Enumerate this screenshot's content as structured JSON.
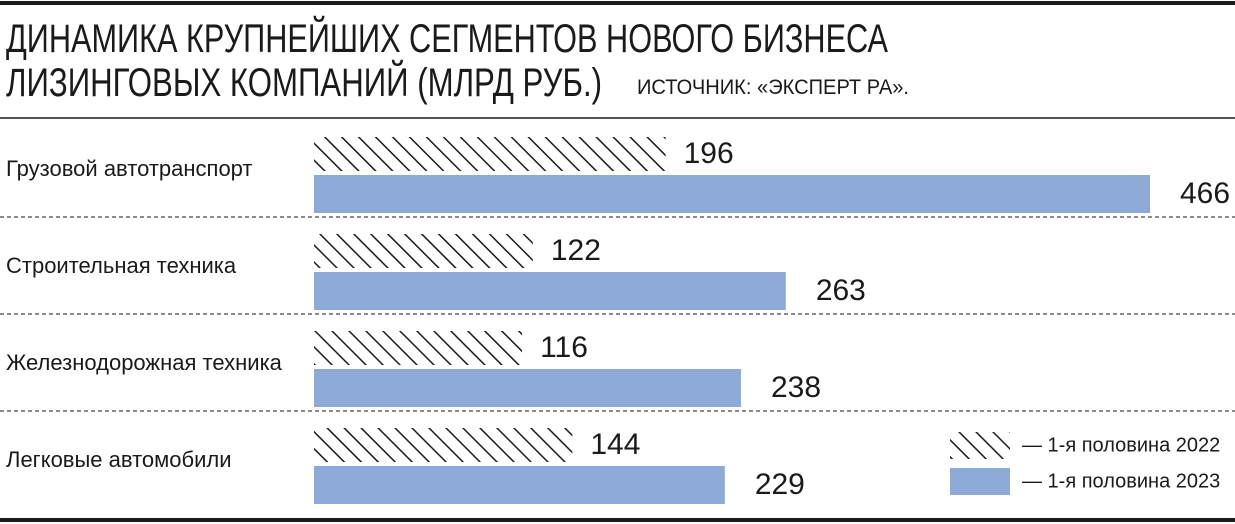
{
  "chart_data": {
    "type": "bar",
    "orientation": "horizontal",
    "title": [
      "ДИНАМИКА КРУПНЕЙШИХ СЕГМЕНТОВ НОВОГО БИЗНЕСА",
      "ЛИЗИНГОВЫХ КОМПАНИЙ (МЛРД РУБ.)"
    ],
    "source": "ИСТОЧНИК: «ЭКСПЕРТ РА».",
    "categories": [
      "Грузовой автотранспорт",
      "Строительная техника",
      "Железнодорожная техника",
      "Легковые автомобили"
    ],
    "series": [
      {
        "name": "— 1-я половина 2022",
        "color": "#1a1a1a",
        "pattern": "hatch",
        "values": [
          196,
          122,
          116,
          144
        ]
      },
      {
        "name": "— 1-я половина 2023",
        "color": "#8eaad6",
        "values": [
          466,
          263,
          238,
          229
        ]
      }
    ],
    "legend": "lower right"
  }
}
